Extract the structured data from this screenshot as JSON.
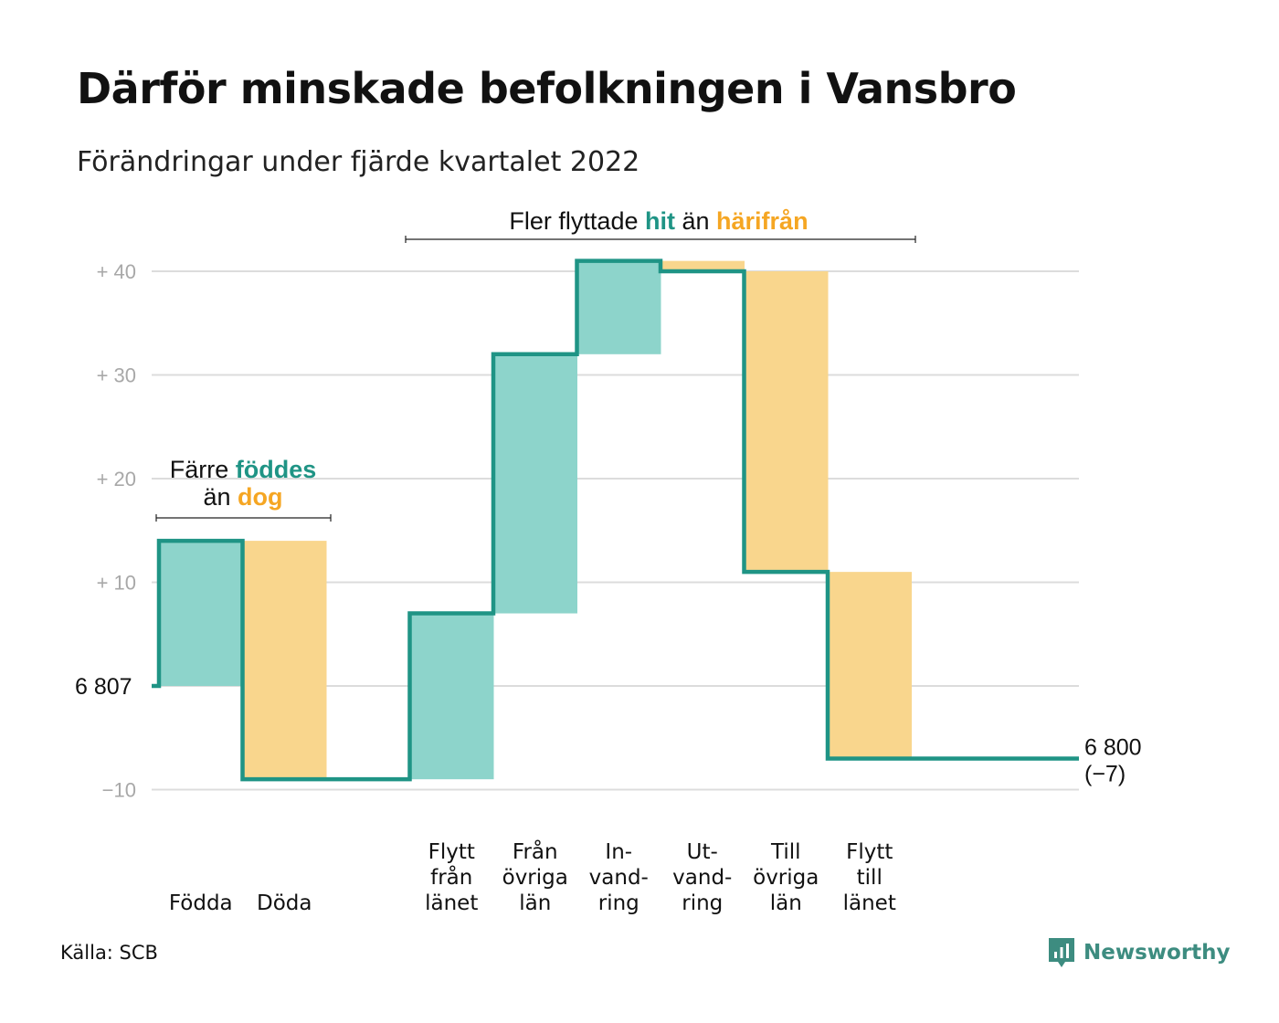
{
  "header": {
    "title": "Därför minskade befolkningen i Vansbro",
    "subtitle": "Förändringar under fjärde kvartalet 2022"
  },
  "footer": {
    "source": "Källa: SCB",
    "brand": "Newsworthy"
  },
  "colors": {
    "inflow": "#8dd4cb",
    "outflow": "#f9d68d",
    "line": "#1f9485",
    "accent_teal": "#1f9485",
    "accent_orange": "#f5a623",
    "grid": "#dcdcdc",
    "tick": "#a8a8a8"
  },
  "chart_data": {
    "type": "waterfall",
    "start_label": "6 807",
    "end_label": "6 800",
    "end_change_label": "(−7)",
    "yticks": [
      {
        "value": 40,
        "label": "+ 40"
      },
      {
        "value": 30,
        "label": "+ 30"
      },
      {
        "value": 20,
        "label": "+ 20"
      },
      {
        "value": 10,
        "label": "+ 10"
      },
      {
        "value": 0,
        "label": ""
      },
      {
        "value": -10,
        "label": "−10"
      }
    ],
    "ylim": [
      -10,
      40
    ],
    "grid": true,
    "steps": [
      {
        "label": [
          "Födda"
        ],
        "kind": "in",
        "from": 0,
        "to": 14
      },
      {
        "label": [
          "Döda"
        ],
        "kind": "out",
        "from": 14,
        "to": -9
      },
      {
        "label": [],
        "kind": "gap",
        "from": -9,
        "to": -9
      },
      {
        "label": [
          "Flytt",
          "från",
          "länet"
        ],
        "kind": "in",
        "from": -9,
        "to": 7
      },
      {
        "label": [
          "Från",
          "övriga",
          "län"
        ],
        "kind": "in",
        "from": 7,
        "to": 32
      },
      {
        "label": [
          "In-",
          "vand-",
          "ring"
        ],
        "kind": "in",
        "from": 32,
        "to": 41
      },
      {
        "label": [
          "Ut-",
          "vand-",
          "ring"
        ],
        "kind": "out",
        "from": 41,
        "to": 40
      },
      {
        "label": [
          "Till",
          "övriga",
          "län"
        ],
        "kind": "out",
        "from": 40,
        "to": 11
      },
      {
        "label": [
          "Flytt",
          "till",
          "länet"
        ],
        "kind": "out",
        "from": 11,
        "to": -7
      }
    ],
    "final_value": -7,
    "annotations": [
      {
        "id": "births",
        "parts": [
          {
            "text": "Färre ",
            "style": "plain"
          },
          {
            "text": "föddes",
            "style": "teal"
          }
        ],
        "parts2": [
          {
            "text": "än ",
            "style": "plain"
          },
          {
            "text": "dog",
            "style": "orange"
          }
        ]
      },
      {
        "id": "moves",
        "parts": [
          {
            "text": "Fler flyttade ",
            "style": "plain"
          },
          {
            "text": "hit",
            "style": "teal"
          },
          {
            "text": " än ",
            "style": "plain"
          },
          {
            "text": "härifrån",
            "style": "orange"
          }
        ]
      }
    ]
  }
}
